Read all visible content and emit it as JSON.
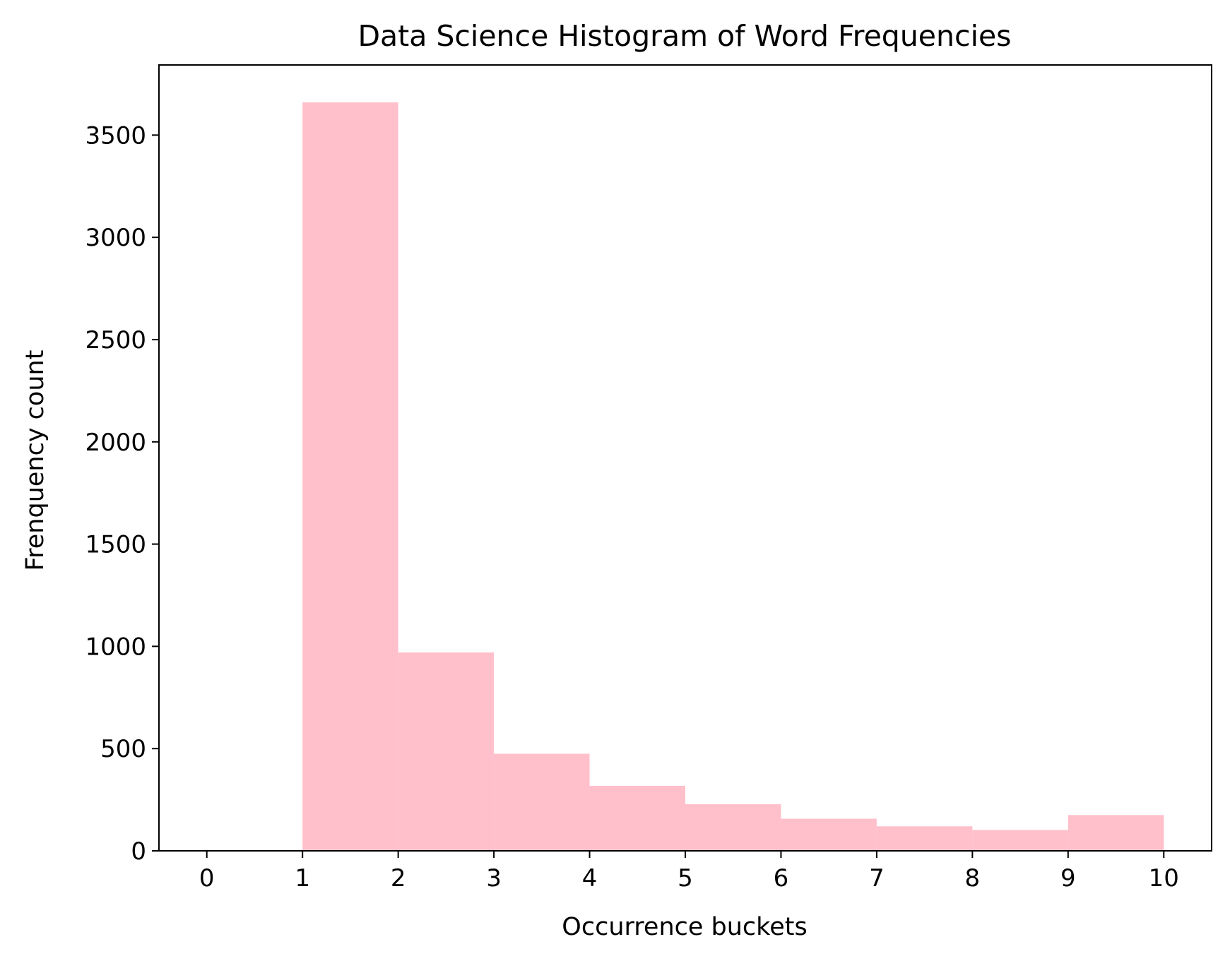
{
  "chart_data": {
    "type": "bar",
    "title": "Data Science Histogram of Word Frequencies",
    "xlabel": "Occurrence buckets",
    "ylabel": "Frenquency count",
    "bar_color": "#FFC0CB",
    "bins": [
      {
        "from": 1,
        "to": 2,
        "value": 3660
      },
      {
        "from": 2,
        "to": 3,
        "value": 970
      },
      {
        "from": 3,
        "to": 4,
        "value": 475
      },
      {
        "from": 4,
        "to": 5,
        "value": 318
      },
      {
        "from": 5,
        "to": 6,
        "value": 228
      },
      {
        "from": 6,
        "to": 7,
        "value": 157
      },
      {
        "from": 7,
        "to": 8,
        "value": 120
      },
      {
        "from": 8,
        "to": 9,
        "value": 102
      },
      {
        "from": 9,
        "to": 10,
        "value": 175
      }
    ],
    "xticks": [
      0,
      1,
      2,
      3,
      4,
      5,
      6,
      7,
      8,
      9,
      10
    ],
    "yticks": [
      0,
      500,
      1000,
      1500,
      2000,
      2500,
      3000,
      3500
    ],
    "xlim": [
      -0.5,
      10.5
    ],
    "ylim": [
      0,
      3843
    ],
    "grid": false
  }
}
